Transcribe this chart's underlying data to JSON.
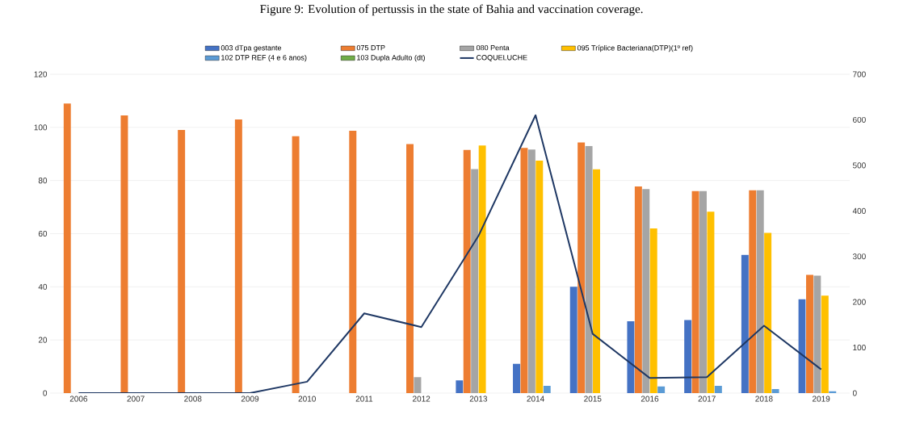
{
  "chart_data": {
    "type": "bar",
    "title": "Figure 9: Evolution of pertussis in the state of Bahia and vaccination coverage.",
    "categories": [
      "2006",
      "2007",
      "2008",
      "2009",
      "2010",
      "2011",
      "2012",
      "2013",
      "2014",
      "2015",
      "2016",
      "2017",
      "2018",
      "2019"
    ],
    "series": [
      {
        "name": "003 dTpa gestante",
        "color": "#4472c4",
        "values": [
          null,
          null,
          null,
          null,
          null,
          null,
          null,
          4.8,
          11,
          40,
          27,
          27.5,
          52,
          35.3
        ]
      },
      {
        "name": "075 DTP",
        "color": "#ed7d31",
        "values": [
          109,
          104.5,
          99,
          103,
          96.7,
          98.7,
          93.7,
          91.5,
          92.3,
          94.3,
          77.8,
          76,
          76.3,
          44.5
        ]
      },
      {
        "name": "080 Penta",
        "color": "#a5a5a5",
        "values": [
          null,
          null,
          null,
          null,
          null,
          null,
          6,
          84.3,
          91.7,
          93,
          76.8,
          76,
          76.3,
          44.2
        ]
      },
      {
        "name": "095 Tríplice Bacteriana(DTP)(1º ref)",
        "color": "#ffc000",
        "values": [
          null,
          null,
          null,
          null,
          null,
          null,
          null,
          93.2,
          87.5,
          84.2,
          62,
          68.3,
          60.3,
          36.7
        ]
      },
      {
        "name": "102 DTP REF (4 e 6 anos)",
        "color": "#5b9bd5",
        "values": [
          null,
          null,
          null,
          null,
          null,
          null,
          null,
          null,
          2.7,
          null,
          2.5,
          2.7,
          1.5,
          0.7
        ]
      },
      {
        "name": "103 Dupla Adulto (dt)",
        "color": "#70ad47",
        "values": [
          null,
          null,
          null,
          null,
          null,
          null,
          null,
          null,
          null,
          null,
          null,
          null,
          null,
          null
        ]
      },
      {
        "name": "COQUELUCHE",
        "color": "#1f3864",
        "type": "line",
        "axis": "y2",
        "values": [
          0,
          0,
          0,
          0,
          25,
          175,
          145,
          345,
          610,
          130,
          33,
          35,
          148,
          52
        ]
      }
    ],
    "ylim": [
      0,
      120
    ],
    "yticks": [
      0,
      20,
      40,
      60,
      80,
      100,
      120
    ],
    "y2lim": [
      0,
      700
    ],
    "y2ticks": [
      0,
      100,
      200,
      300,
      400,
      500,
      600,
      700
    ],
    "grid": "y",
    "legend": "top"
  }
}
